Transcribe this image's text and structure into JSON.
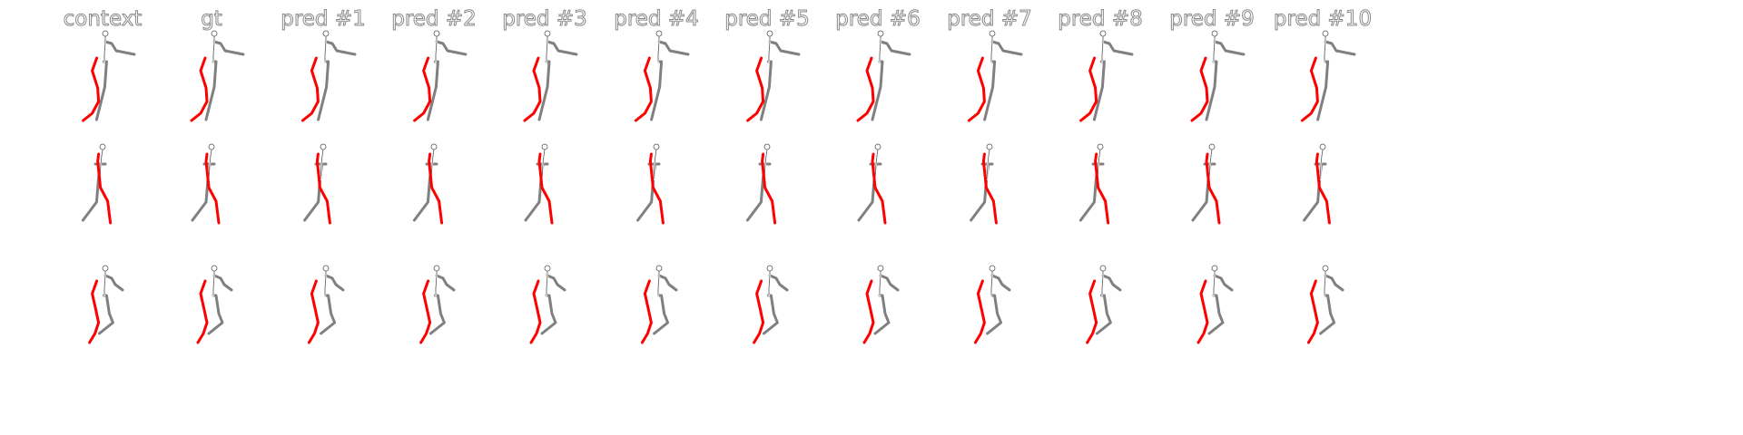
{
  "columns": [
    "context",
    "gt",
    "pred #1",
    "pred #2",
    "pred #3",
    "pred #4",
    "pred #5",
    "pred #6",
    "pred #7",
    "pred #8",
    "pred #9",
    "pred #10"
  ],
  "colors": {
    "left_limb": "#ff0000",
    "right_limb": "#808080",
    "head": "#555555",
    "title_outline": "#8a8a8a"
  },
  "rows": [
    "pose-row-1",
    "pose-row-2",
    "pose-row-3"
  ]
}
